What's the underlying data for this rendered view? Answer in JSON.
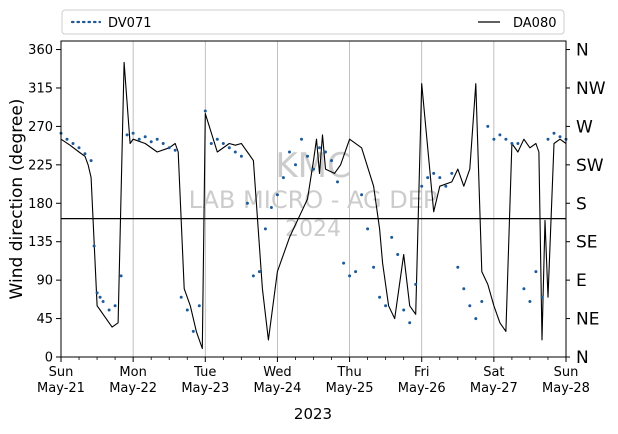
{
  "chart_data": {
    "type": "scatter",
    "xlabel": "2023",
    "ylabel": "Wind direction (degree)",
    "ylim": [
      0,
      370
    ],
    "yticks": [
      0,
      45,
      90,
      135,
      180,
      225,
      270,
      315,
      360
    ],
    "compass_labels": [
      {
        "value": 0,
        "label": "N"
      },
      {
        "value": 45,
        "label": "NE"
      },
      {
        "value": 90,
        "label": "E"
      },
      {
        "value": 135,
        "label": "SE"
      },
      {
        "value": 180,
        "label": "S"
      },
      {
        "value": 225,
        "label": "SW"
      },
      {
        "value": 270,
        "label": "W"
      },
      {
        "value": 315,
        "label": "NW"
      },
      {
        "value": 360,
        "label": "N"
      }
    ],
    "x_ticks": [
      {
        "day": "Sun",
        "date": "May-21"
      },
      {
        "day": "Mon",
        "date": "May-22"
      },
      {
        "day": "Tue",
        "date": "May-23"
      },
      {
        "day": "Wed",
        "date": "May-24"
      },
      {
        "day": "Thu",
        "date": "May-25"
      },
      {
        "day": "Fri",
        "date": "May-26"
      },
      {
        "day": "Sat",
        "date": "May-27"
      },
      {
        "day": "Sun",
        "date": "May-28"
      }
    ],
    "reference_line": 162,
    "grid": "vertical",
    "legend": {
      "placement": "top",
      "entries": [
        {
          "name": "DV071",
          "style": "dotted"
        },
        {
          "name": "DA080",
          "style": "line"
        }
      ]
    },
    "watermark": [
      "KMC",
      "LAB MICRO - AG DEP",
      "2024"
    ],
    "colors": {
      "dv071": "#1f5a96",
      "da080": "#000000",
      "grid": "#b0b0b0",
      "watermark": "#cccccc"
    },
    "series": [
      {
        "name": "DA080",
        "x": [
          "2023-05-21 00:00",
          "2023-05-21 03:00",
          "2023-05-21 06:00",
          "2023-05-21 08:00",
          "2023-05-21 09:00",
          "2023-05-21 10:00",
          "2023-05-21 12:00",
          "2023-05-21 13:00",
          "2023-05-21 14:00",
          "2023-05-21 15:00",
          "2023-05-21 17:00",
          "2023-05-21 19:00",
          "2023-05-21 21:00",
          "2023-05-21 23:00",
          "2023-05-22 00:00",
          "2023-05-22 04:00",
          "2023-05-22 08:00",
          "2023-05-22 12:00",
          "2023-05-22 14:00",
          "2023-05-22 15:00",
          "2023-05-22 17:00",
          "2023-05-22 19:00",
          "2023-05-22 21:00",
          "2023-05-22 23:00",
          "2023-05-23 00:00",
          "2023-05-23 04:00",
          "2023-05-23 08:00",
          "2023-05-23 10:00",
          "2023-05-23 12:00",
          "2023-05-23 13:00",
          "2023-05-23 14:00",
          "2023-05-23 16:00",
          "2023-05-23 19:00",
          "2023-05-23 21:00",
          "2023-05-24 00:00",
          "2023-05-24 04:00",
          "2023-05-24 08:00",
          "2023-05-24 10:00",
          "2023-05-24 12:00",
          "2023-05-24 13:00",
          "2023-05-24 14:00",
          "2023-05-24 15:00",
          "2023-05-24 16:00",
          "2023-05-24 19:00",
          "2023-05-24 21:00",
          "2023-05-25 00:00",
          "2023-05-25 04:00",
          "2023-05-25 08:00",
          "2023-05-25 10:00",
          "2023-05-25 11:00",
          "2023-05-25 13:00",
          "2023-05-25 15:00",
          "2023-05-25 18:00",
          "2023-05-25 20:00",
          "2023-05-25 22:00",
          "2023-05-26 00:00",
          "2023-05-26 04:00",
          "2023-05-26 06:00",
          "2023-05-26 10:00",
          "2023-05-26 12:00",
          "2023-05-26 14:00",
          "2023-05-26 16:00",
          "2023-05-26 18:00",
          "2023-05-26 20:00",
          "2023-05-26 22:00",
          "2023-05-27 00:00",
          "2023-05-27 02:00",
          "2023-05-27 04:00",
          "2023-05-27 06:00",
          "2023-05-27 08:00",
          "2023-05-27 10:00",
          "2023-05-27 12:00",
          "2023-05-27 14:00",
          "2023-05-27 15:00",
          "2023-05-27 16:00",
          "2023-05-27 17:00",
          "2023-05-27 18:00",
          "2023-05-27 20:00",
          "2023-05-27 22:00",
          "2023-05-28 00:00"
        ],
        "values": [
          255,
          248,
          240,
          235,
          225,
          210,
          60,
          55,
          50,
          45,
          35,
          40,
          345,
          250,
          255,
          250,
          240,
          245,
          250,
          240,
          80,
          60,
          30,
          10,
          285,
          240,
          250,
          248,
          250,
          245,
          240,
          230,
          80,
          20,
          100,
          140,
          170,
          185,
          230,
          255,
          215,
          260,
          220,
          215,
          225,
          255,
          245,
          200,
          150,
          110,
          60,
          45,
          120,
          60,
          50,
          320,
          170,
          200,
          205,
          220,
          200,
          220,
          320,
          100,
          85,
          60,
          40,
          30,
          250,
          240,
          255,
          245,
          250,
          240,
          20,
          160,
          70,
          250,
          255,
          250
        ]
      },
      {
        "name": "DV071",
        "x": [
          "2023-05-21 00:00",
          "2023-05-21 02:00",
          "2023-05-21 04:00",
          "2023-05-21 06:00",
          "2023-05-21 08:00",
          "2023-05-21 10:00",
          "2023-05-21 11:00",
          "2023-05-21 12:00",
          "2023-05-21 13:00",
          "2023-05-21 14:00",
          "2023-05-21 16:00",
          "2023-05-21 18:00",
          "2023-05-21 20:00",
          "2023-05-21 22:00",
          "2023-05-22 00:00",
          "2023-05-22 02:00",
          "2023-05-22 04:00",
          "2023-05-22 06:00",
          "2023-05-22 08:00",
          "2023-05-22 10:00",
          "2023-05-22 12:00",
          "2023-05-22 14:00",
          "2023-05-22 16:00",
          "2023-05-22 18:00",
          "2023-05-22 20:00",
          "2023-05-22 22:00",
          "2023-05-23 00:00",
          "2023-05-23 02:00",
          "2023-05-23 04:00",
          "2023-05-23 06:00",
          "2023-05-23 08:00",
          "2023-05-23 10:00",
          "2023-05-23 12:00",
          "2023-05-23 14:00",
          "2023-05-23 16:00",
          "2023-05-23 18:00",
          "2023-05-23 20:00",
          "2023-05-23 22:00",
          "2023-05-24 00:00",
          "2023-05-24 02:00",
          "2023-05-24 04:00",
          "2023-05-24 06:00",
          "2023-05-24 08:00",
          "2023-05-24 10:00",
          "2023-05-24 12:00",
          "2023-05-24 14:00",
          "2023-05-24 16:00",
          "2023-05-24 18:00",
          "2023-05-24 20:00",
          "2023-05-24 22:00",
          "2023-05-25 00:00",
          "2023-05-25 02:00",
          "2023-05-25 04:00",
          "2023-05-25 06:00",
          "2023-05-25 08:00",
          "2023-05-25 10:00",
          "2023-05-25 12:00",
          "2023-05-25 14:00",
          "2023-05-25 16:00",
          "2023-05-25 18:00",
          "2023-05-25 20:00",
          "2023-05-25 22:00",
          "2023-05-26 00:00",
          "2023-05-26 02:00",
          "2023-05-26 04:00",
          "2023-05-26 06:00",
          "2023-05-26 08:00",
          "2023-05-26 10:00",
          "2023-05-26 12:00",
          "2023-05-26 14:00",
          "2023-05-26 16:00",
          "2023-05-26 18:00",
          "2023-05-26 20:00",
          "2023-05-26 22:00",
          "2023-05-27 00:00",
          "2023-05-27 02:00",
          "2023-05-27 04:00",
          "2023-05-27 06:00",
          "2023-05-27 08:00",
          "2023-05-27 10:00",
          "2023-05-27 12:00",
          "2023-05-27 14:00",
          "2023-05-27 16:00",
          "2023-05-27 18:00",
          "2023-05-27 20:00",
          "2023-05-27 22:00",
          "2023-05-28 00:00"
        ],
        "values": [
          262,
          255,
          250,
          245,
          238,
          230,
          130,
          75,
          70,
          65,
          55,
          60,
          95,
          260,
          262,
          255,
          258,
          252,
          255,
          250,
          245,
          242,
          70,
          55,
          30,
          60,
          288,
          250,
          255,
          250,
          245,
          240,
          235,
          180,
          95,
          100,
          150,
          175,
          190,
          210,
          240,
          225,
          255,
          235,
          220,
          245,
          240,
          230,
          205,
          110,
          95,
          100,
          190,
          150,
          105,
          70,
          60,
          140,
          120,
          55,
          40,
          85,
          200,
          210,
          215,
          210,
          200,
          215,
          105,
          80,
          60,
          45,
          65,
          270,
          255,
          260,
          255,
          250,
          250,
          80,
          65,
          100,
          70,
          255,
          262,
          258,
          255
        ]
      }
    ]
  }
}
